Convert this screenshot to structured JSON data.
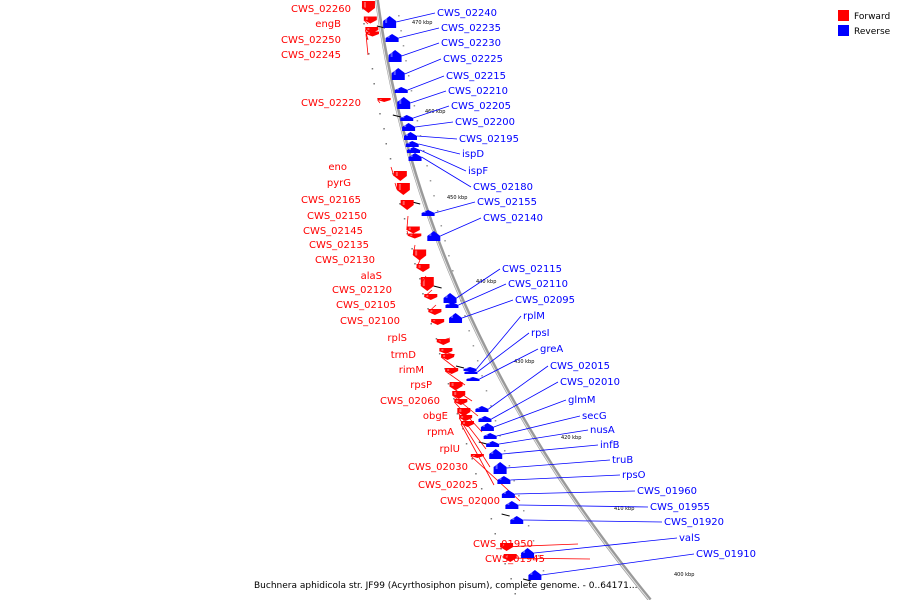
{
  "legend": [
    {
      "label": "Forward",
      "color": "#ff0000"
    },
    {
      "label": "Reverse",
      "color": "#0000ff"
    }
  ],
  "caption": "Buchnera aphidicola str. JF99 (Acyrthosiphon pisum), complete genome. - 0..64171...",
  "ticks": [
    {
      "label": "470 kbp"
    },
    {
      "label": "460 kbp"
    },
    {
      "label": "450 kbp"
    },
    {
      "label": "440 kbp"
    },
    {
      "label": "430 kbp"
    },
    {
      "label": "420 kbp"
    },
    {
      "label": "410 kbp"
    },
    {
      "label": "400 kbp"
    }
  ],
  "forward_genes": [
    {
      "label": "CWS_02260"
    },
    {
      "label": "engB"
    },
    {
      "label": "CWS_02250"
    },
    {
      "label": "CWS_02245"
    },
    {
      "label": "CWS_02220"
    },
    {
      "label": "eno"
    },
    {
      "label": "pyrG"
    },
    {
      "label": "CWS_02165"
    },
    {
      "label": "CWS_02150"
    },
    {
      "label": "CWS_02145"
    },
    {
      "label": "CWS_02135"
    },
    {
      "label": "CWS_02130"
    },
    {
      "label": "alaS"
    },
    {
      "label": "CWS_02120"
    },
    {
      "label": "CWS_02105"
    },
    {
      "label": "CWS_02100"
    },
    {
      "label": "rplS"
    },
    {
      "label": "trmD"
    },
    {
      "label": "rimM"
    },
    {
      "label": "rpsP"
    },
    {
      "label": "CWS_02060"
    },
    {
      "label": "obgE"
    },
    {
      "label": "rpmA"
    },
    {
      "label": "rplU"
    },
    {
      "label": "CWS_02030"
    },
    {
      "label": "CWS_02025"
    },
    {
      "label": "CWS_02000"
    },
    {
      "label": "CWS_01950"
    },
    {
      "label": "CWS_01945"
    }
  ],
  "reverse_genes": [
    {
      "label": "CWS_02240"
    },
    {
      "label": "CWS_02235"
    },
    {
      "label": "CWS_02230"
    },
    {
      "label": "CWS_02225"
    },
    {
      "label": "CWS_02215"
    },
    {
      "label": "CWS_02210"
    },
    {
      "label": "CWS_02205"
    },
    {
      "label": "CWS_02200"
    },
    {
      "label": "CWS_02195"
    },
    {
      "label": "ispD"
    },
    {
      "label": "ispF"
    },
    {
      "label": "CWS_02180"
    },
    {
      "label": "CWS_02155"
    },
    {
      "label": "CWS_02140"
    },
    {
      "label": "CWS_02115"
    },
    {
      "label": "CWS_02110"
    },
    {
      "label": "CWS_02095"
    },
    {
      "label": "rplM"
    },
    {
      "label": "rpsI"
    },
    {
      "label": "greA"
    },
    {
      "label": "CWS_02015"
    },
    {
      "label": "CWS_02010"
    },
    {
      "label": "glmM"
    },
    {
      "label": "secG"
    },
    {
      "label": "nusA"
    },
    {
      "label": "infB"
    },
    {
      "label": "truB"
    },
    {
      "label": "rpsO"
    },
    {
      "label": "CWS_01960"
    },
    {
      "label": "CWS_01955"
    },
    {
      "label": "CWS_01920"
    },
    {
      "label": "valS"
    },
    {
      "label": "CWS_01910"
    }
  ]
}
